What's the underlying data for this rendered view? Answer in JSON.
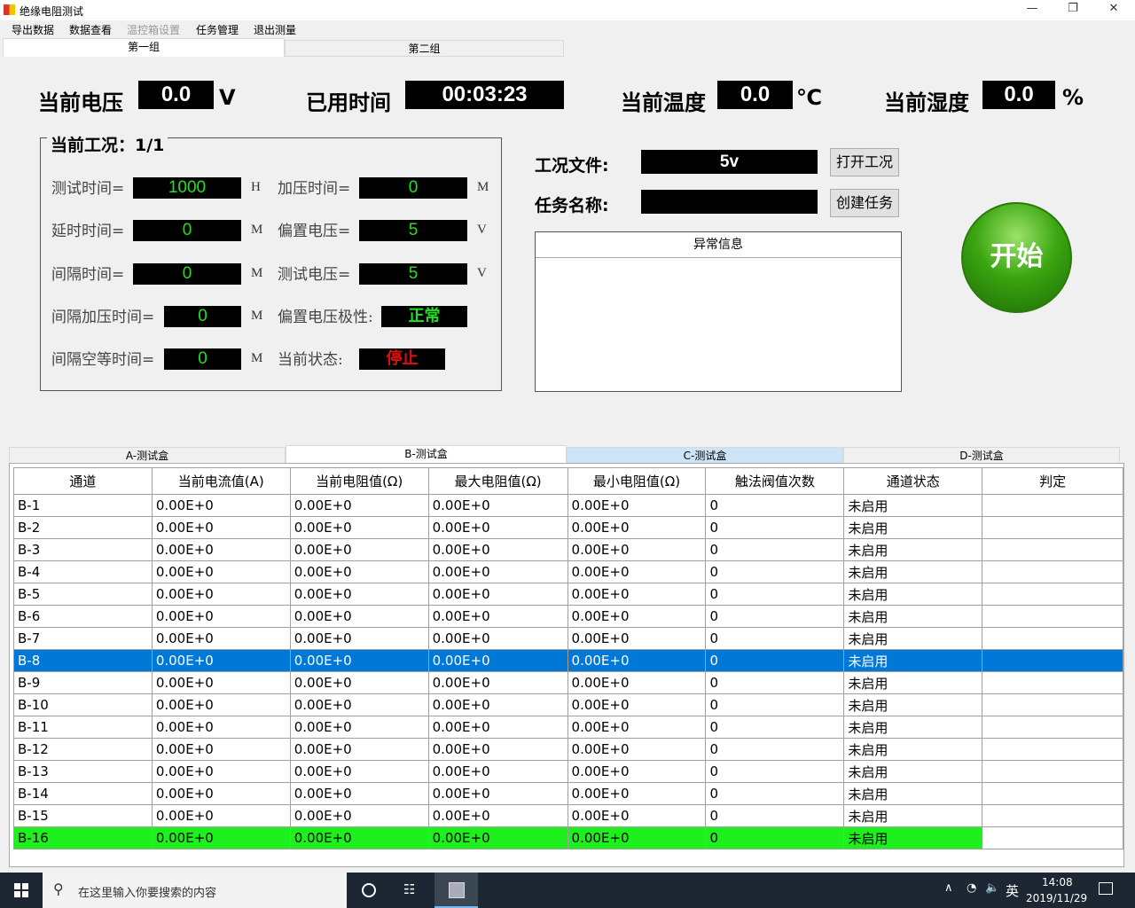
{
  "window": {
    "title": "绝缘电阻测试",
    "minimize": "—",
    "restore": "❐",
    "close": "✕"
  },
  "menu": [
    "导出数据",
    "数据查看",
    "温控箱设置",
    "任务管理",
    "退出测量"
  ],
  "group_tabs": [
    "第一组",
    "第二组"
  ],
  "readouts": {
    "voltage": {
      "label": "当前电压",
      "value": "0.0",
      "unit": "V"
    },
    "elapsed": {
      "label": "已用时间",
      "value": "00:03:23"
    },
    "temperature": {
      "label": "当前温度",
      "value": "0.0",
      "unit": "℃"
    },
    "humidity": {
      "label": "当前湿度",
      "value": "0.0",
      "unit": "%"
    }
  },
  "condition": {
    "title": "当前工况：1/1",
    "left": [
      {
        "label": "测试时间=",
        "value": "1000",
        "unit": "H"
      },
      {
        "label": "延时时间=",
        "value": "0",
        "unit": "M"
      },
      {
        "label": "间隔时间=",
        "value": "0",
        "unit": "M"
      },
      {
        "label": "间隔加压时间=",
        "value": "0",
        "unit": "M"
      },
      {
        "label": "间隔空等时间=",
        "value": "0",
        "unit": "M"
      }
    ],
    "right": [
      {
        "label": "加压时间=",
        "value": "0",
        "unit": "M"
      },
      {
        "label": "偏置电压=",
        "value": "5",
        "unit": "V"
      },
      {
        "label": "测试电压=",
        "value": "5",
        "unit": "V"
      },
      {
        "label": "偏置电压极性:",
        "value": "正常",
        "unit": ""
      },
      {
        "label": "当前状态:",
        "value": "停止",
        "unit": ""
      }
    ]
  },
  "file": {
    "label": "工况文件:",
    "value": "5v",
    "button": "打开工况"
  },
  "task": {
    "label": "任务名称:",
    "value": "",
    "button": "创建任务"
  },
  "error_panel": {
    "header": "异常信息"
  },
  "start_button": "开始",
  "colors": {
    "value_green": "#22e022",
    "status_red": "#e01010",
    "selected_row": "#0078d7",
    "highlight_row": "#1ef01e",
    "start_green": "#3aa510"
  },
  "box_tabs": [
    "A-测试盒",
    "B-测试盒",
    "C-测试盒",
    "D-测试盒"
  ],
  "table": {
    "headers": [
      "通道",
      "当前电流值(A)",
      "当前电阻值(Ω)",
      "最大电阻值(Ω)",
      "最小电阻值(Ω)",
      "触法阀值次数",
      "通道状态",
      "判定"
    ],
    "rows": [
      [
        "B-1",
        "0.00E+0",
        "0.00E+0",
        "0.00E+0",
        "0.00E+0",
        "0",
        "未启用",
        ""
      ],
      [
        "B-2",
        "0.00E+0",
        "0.00E+0",
        "0.00E+0",
        "0.00E+0",
        "0",
        "未启用",
        ""
      ],
      [
        "B-3",
        "0.00E+0",
        "0.00E+0",
        "0.00E+0",
        "0.00E+0",
        "0",
        "未启用",
        ""
      ],
      [
        "B-4",
        "0.00E+0",
        "0.00E+0",
        "0.00E+0",
        "0.00E+0",
        "0",
        "未启用",
        ""
      ],
      [
        "B-5",
        "0.00E+0",
        "0.00E+0",
        "0.00E+0",
        "0.00E+0",
        "0",
        "未启用",
        ""
      ],
      [
        "B-6",
        "0.00E+0",
        "0.00E+0",
        "0.00E+0",
        "0.00E+0",
        "0",
        "未启用",
        ""
      ],
      [
        "B-7",
        "0.00E+0",
        "0.00E+0",
        "0.00E+0",
        "0.00E+0",
        "0",
        "未启用",
        ""
      ],
      [
        "B-8",
        "0.00E+0",
        "0.00E+0",
        "0.00E+0",
        "0.00E+0",
        "0",
        "未启用",
        ""
      ],
      [
        "B-9",
        "0.00E+0",
        "0.00E+0",
        "0.00E+0",
        "0.00E+0",
        "0",
        "未启用",
        ""
      ],
      [
        "B-10",
        "0.00E+0",
        "0.00E+0",
        "0.00E+0",
        "0.00E+0",
        "0",
        "未启用",
        ""
      ],
      [
        "B-11",
        "0.00E+0",
        "0.00E+0",
        "0.00E+0",
        "0.00E+0",
        "0",
        "未启用",
        ""
      ],
      [
        "B-12",
        "0.00E+0",
        "0.00E+0",
        "0.00E+0",
        "0.00E+0",
        "0",
        "未启用",
        ""
      ],
      [
        "B-13",
        "0.00E+0",
        "0.00E+0",
        "0.00E+0",
        "0.00E+0",
        "0",
        "未启用",
        ""
      ],
      [
        "B-14",
        "0.00E+0",
        "0.00E+0",
        "0.00E+0",
        "0.00E+0",
        "0",
        "未启用",
        ""
      ],
      [
        "B-15",
        "0.00E+0",
        "0.00E+0",
        "0.00E+0",
        "0.00E+0",
        "0",
        "未启用",
        ""
      ],
      [
        "B-16",
        "0.00E+0",
        "0.00E+0",
        "0.00E+0",
        "0.00E+0",
        "0",
        "未启用",
        ""
      ]
    ],
    "selected_row": "B-8",
    "highlighted_row": "B-16"
  },
  "taskbar": {
    "search_placeholder": "在这里输入你要搜索的内容",
    "ime": "英",
    "time": "14:08",
    "date": "2019/11/29"
  }
}
